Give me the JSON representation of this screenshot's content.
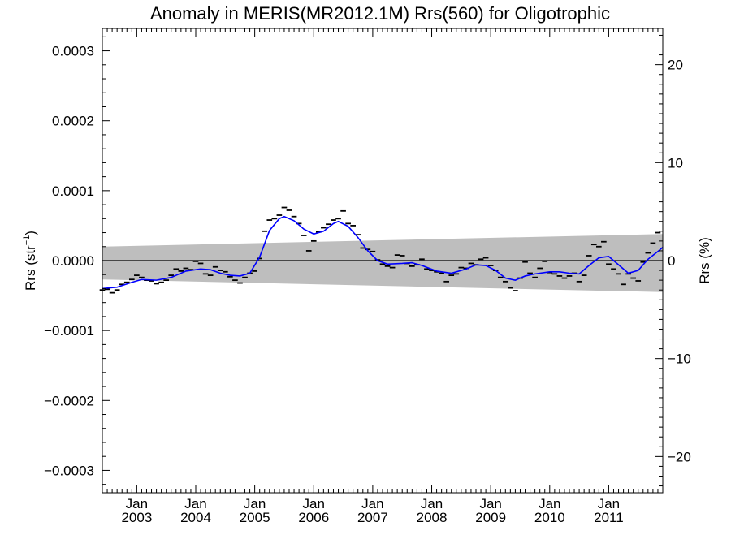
{
  "chart_data": {
    "type": "line",
    "title": "Anomaly in MERIS(MR2012.1M) Rrs(560) for Oligotrophic",
    "ylabel_left_prefix": "Rrs (str",
    "ylabel_left_exp": "−1",
    "ylabel_left_suffix": ")",
    "ylabel_right": "Rrs (%)",
    "xlim": [
      "2002-06",
      "2011-12"
    ],
    "ylim": [
      -0.000332,
      0.000332
    ],
    "y2lim": [
      -23.7,
      23.7
    ],
    "y_ticks": [
      {
        "value": 0.0003,
        "label": "0.0003"
      },
      {
        "value": 0.0002,
        "label": "0.0002"
      },
      {
        "value": 0.0001,
        "label": "0.0001"
      },
      {
        "value": 0.0,
        "label": "0.0000"
      },
      {
        "value": -0.0001,
        "label": "−0.0001"
      },
      {
        "value": -0.0002,
        "label": "−0.0002"
      },
      {
        "value": -0.0003,
        "label": "−0.0003"
      }
    ],
    "y2_ticks": [
      {
        "value": 20,
        "label": "20"
      },
      {
        "value": 10,
        "label": "10"
      },
      {
        "value": 0,
        "label": "0"
      },
      {
        "value": -10,
        "label": "−10"
      },
      {
        "value": -20,
        "label": "−20"
      }
    ],
    "x_ticks": [
      {
        "date": "2003-01",
        "month": "Jan",
        "year": "2003"
      },
      {
        "date": "2004-01",
        "month": "Jan",
        "year": "2004"
      },
      {
        "date": "2005-01",
        "month": "Jan",
        "year": "2005"
      },
      {
        "date": "2006-01",
        "month": "Jan",
        "year": "2006"
      },
      {
        "date": "2007-01",
        "month": "Jan",
        "year": "2007"
      },
      {
        "date": "2008-01",
        "month": "Jan",
        "year": "2008"
      },
      {
        "date": "2009-01",
        "month": "Jan",
        "year": "2009"
      },
      {
        "date": "2010-01",
        "month": "Jan",
        "year": "2010"
      },
      {
        "date": "2011-01",
        "month": "Jan",
        "year": "2011"
      }
    ],
    "band": {
      "color": "#bebebe",
      "start": {
        "date": "2002-06",
        "upper": 2e-05,
        "lower": -2.7e-05
      },
      "end": {
        "date": "2011-12",
        "upper": 3.8e-05,
        "lower": -4.5e-05
      }
    },
    "zero_line": 0,
    "monthly_anomalies": {
      "color": "#000000",
      "marker": "short horizontal dash",
      "points": [
        [
          "2002-06",
          -4.2e-05
        ],
        [
          "2002-07",
          -4.1e-05
        ],
        [
          "2002-08",
          -4.6e-05
        ],
        [
          "2002-09",
          -4.2e-05
        ],
        [
          "2002-10",
          -3.4e-05
        ],
        [
          "2002-11",
          -3.1e-05
        ],
        [
          "2002-12",
          -2.7e-05
        ],
        [
          "2003-01",
          -2.1e-05
        ],
        [
          "2003-02",
          -2.4e-05
        ],
        [
          "2003-03",
          -2.8e-05
        ],
        [
          "2003-04",
          -2.9e-05
        ],
        [
          "2003-05",
          -3.3e-05
        ],
        [
          "2003-06",
          -3.1e-05
        ],
        [
          "2003-07",
          -2.8e-05
        ],
        [
          "2003-08",
          -2.1e-05
        ],
        [
          "2003-09",
          -1.2e-05
        ],
        [
          "2003-10",
          -1.5e-05
        ],
        [
          "2003-11",
          -1.1e-05
        ],
        [
          "2003-12",
          -1.3e-05
        ],
        [
          "2004-01",
          -1e-06
        ],
        [
          "2004-02",
          -4e-06
        ],
        [
          "2004-03",
          -1.9e-05
        ],
        [
          "2004-04",
          -2.1e-05
        ],
        [
          "2004-05",
          -9e-06
        ],
        [
          "2004-06",
          -1.4e-05
        ],
        [
          "2004-07",
          -1.6e-05
        ],
        [
          "2004-08",
          -2.3e-05
        ],
        [
          "2004-09",
          -2.8e-05
        ],
        [
          "2004-10",
          -3.2e-05
        ],
        [
          "2004-11",
          -2.4e-05
        ],
        [
          "2004-12",
          -1.8e-05
        ],
        [
          "2005-01",
          -1.5e-05
        ],
        [
          "2005-02",
          3e-06
        ],
        [
          "2005-03",
          4.2e-05
        ],
        [
          "2005-04",
          5.8e-05
        ],
        [
          "2005-05",
          6e-05
        ],
        [
          "2005-06",
          6.5e-05
        ],
        [
          "2005-07",
          7.6e-05
        ],
        [
          "2005-08",
          7.2e-05
        ],
        [
          "2005-09",
          6.3e-05
        ],
        [
          "2005-10",
          5.3e-05
        ],
        [
          "2005-11",
          3.6e-05
        ],
        [
          "2005-12",
          1.4e-05
        ],
        [
          "2006-01",
          2.8e-05
        ],
        [
          "2006-02",
          4.1e-05
        ],
        [
          "2006-03",
          4.7e-05
        ],
        [
          "2006-04",
          5.2e-05
        ],
        [
          "2006-05",
          5.8e-05
        ],
        [
          "2006-06",
          6e-05
        ],
        [
          "2006-07",
          7.1e-05
        ],
        [
          "2006-08",
          5.3e-05
        ],
        [
          "2006-09",
          5e-05
        ],
        [
          "2006-10",
          3.7e-05
        ],
        [
          "2006-11",
          1.8e-05
        ],
        [
          "2006-12",
          1.6e-05
        ],
        [
          "2007-01",
          1.3e-05
        ],
        [
          "2007-02",
          1e-06
        ],
        [
          "2007-03",
          -5e-06
        ],
        [
          "2007-04",
          -8e-06
        ],
        [
          "2007-05",
          -1e-05
        ],
        [
          "2007-06",
          8e-06
        ],
        [
          "2007-07",
          7e-06
        ],
        [
          "2007-08",
          -4e-06
        ],
        [
          "2007-09",
          -8e-06
        ],
        [
          "2007-10",
          -6e-06
        ],
        [
          "2007-11",
          2e-06
        ],
        [
          "2007-12",
          -1.2e-05
        ],
        [
          "2008-01",
          -1.4e-05
        ],
        [
          "2008-02",
          -1.6e-05
        ],
        [
          "2008-03",
          -1.8e-05
        ],
        [
          "2008-04",
          -3e-05
        ],
        [
          "2008-05",
          -2.1e-05
        ],
        [
          "2008-06",
          -1.9e-05
        ],
        [
          "2008-07",
          -1e-05
        ],
        [
          "2008-08",
          -1.1e-05
        ],
        [
          "2008-09",
          -4e-06
        ],
        [
          "2008-10",
          -6e-06
        ],
        [
          "2008-11",
          2e-06
        ],
        [
          "2008-12",
          4e-06
        ],
        [
          "2009-01",
          -7e-06
        ],
        [
          "2009-02",
          -1.4e-05
        ],
        [
          "2009-03",
          -2.4e-05
        ],
        [
          "2009-04",
          -3e-05
        ],
        [
          "2009-05",
          -3.9e-05
        ],
        [
          "2009-06",
          -4.3e-05
        ],
        [
          "2009-07",
          -2.5e-05
        ],
        [
          "2009-08",
          -2e-06
        ],
        [
          "2009-09",
          -1.8e-05
        ],
        [
          "2009-10",
          -2.4e-05
        ],
        [
          "2009-11",
          -1.1e-05
        ],
        [
          "2009-12",
          -1e-06
        ],
        [
          "2010-01",
          -1.7e-05
        ],
        [
          "2010-02",
          -1.9e-05
        ],
        [
          "2010-03",
          -2.2e-05
        ],
        [
          "2010-04",
          -2.5e-05
        ],
        [
          "2010-05",
          -2.2e-05
        ],
        [
          "2010-06",
          -1.8e-05
        ],
        [
          "2010-07",
          -3e-05
        ],
        [
          "2010-08",
          -2.1e-05
        ],
        [
          "2010-09",
          7e-06
        ],
        [
          "2010-10",
          2.3e-05
        ],
        [
          "2010-11",
          2e-05
        ],
        [
          "2010-12",
          2.7e-05
        ],
        [
          "2011-01",
          -5e-06
        ],
        [
          "2011-02",
          -1.2e-05
        ],
        [
          "2011-03",
          -1.9e-05
        ],
        [
          "2011-04",
          -3.4e-05
        ],
        [
          "2011-05",
          -1.9e-05
        ],
        [
          "2011-06",
          -2.5e-05
        ],
        [
          "2011-07",
          -2.9e-05
        ],
        [
          "2011-08",
          -2e-06
        ],
        [
          "2011-09",
          1.1e-05
        ],
        [
          "2011-10",
          2.5e-05
        ],
        [
          "2011-11",
          4e-05
        ]
      ]
    },
    "smoothed": {
      "color": "#0000ff",
      "points": [
        [
          "2002-06",
          -4e-05
        ],
        [
          "2002-09",
          -3.8e-05
        ],
        [
          "2002-12",
          -3.1e-05
        ],
        [
          "2003-02",
          -2.7e-05
        ],
        [
          "2003-05",
          -2.8e-05
        ],
        [
          "2003-08",
          -2.4e-05
        ],
        [
          "2003-11",
          -1.5e-05
        ],
        [
          "2004-02",
          -1.2e-05
        ],
        [
          "2004-04",
          -1.3e-05
        ],
        [
          "2004-06",
          -1.8e-05
        ],
        [
          "2004-08",
          -2.1e-05
        ],
        [
          "2004-10",
          -2.2e-05
        ],
        [
          "2004-12",
          -1.8e-05
        ],
        [
          "2005-02",
          5e-06
        ],
        [
          "2005-04",
          4.3e-05
        ],
        [
          "2005-06",
          6e-05
        ],
        [
          "2005-07",
          6.3e-05
        ],
        [
          "2005-09",
          5.7e-05
        ],
        [
          "2005-11",
          4.5e-05
        ],
        [
          "2006-01",
          3.8e-05
        ],
        [
          "2006-03",
          4.2e-05
        ],
        [
          "2006-05",
          5.3e-05
        ],
        [
          "2006-06",
          5.6e-05
        ],
        [
          "2006-08",
          4.9e-05
        ],
        [
          "2006-10",
          3.3e-05
        ],
        [
          "2006-12",
          1.4e-05
        ],
        [
          "2007-02",
          0.0
        ],
        [
          "2007-04",
          -5e-06
        ],
        [
          "2007-07",
          -4e-06
        ],
        [
          "2007-09",
          -3e-06
        ],
        [
          "2007-11",
          -7e-06
        ],
        [
          "2008-02",
          -1.5e-05
        ],
        [
          "2008-05",
          -1.8e-05
        ],
        [
          "2008-08",
          -1.2e-05
        ],
        [
          "2008-10",
          -6e-06
        ],
        [
          "2008-12",
          -7e-06
        ],
        [
          "2009-02",
          -1.4e-05
        ],
        [
          "2009-04",
          -2.5e-05
        ],
        [
          "2009-06",
          -2.8e-05
        ],
        [
          "2009-08",
          -2.2e-05
        ],
        [
          "2009-10",
          -1.9e-05
        ],
        [
          "2010-01",
          -1.6e-05
        ],
        [
          "2010-03",
          -1.6e-05
        ],
        [
          "2010-05",
          -1.8e-05
        ],
        [
          "2010-07",
          -1.9e-05
        ],
        [
          "2010-09",
          -7e-06
        ],
        [
          "2010-11",
          4e-06
        ],
        [
          "2011-01",
          6e-06
        ],
        [
          "2011-03",
          -6e-06
        ],
        [
          "2011-05",
          -1.8e-05
        ],
        [
          "2011-07",
          -1.4e-05
        ],
        [
          "2011-09",
          2e-06
        ],
        [
          "2011-11",
          1.3e-05
        ],
        [
          "2011-12",
          1.9e-05
        ]
      ]
    }
  }
}
